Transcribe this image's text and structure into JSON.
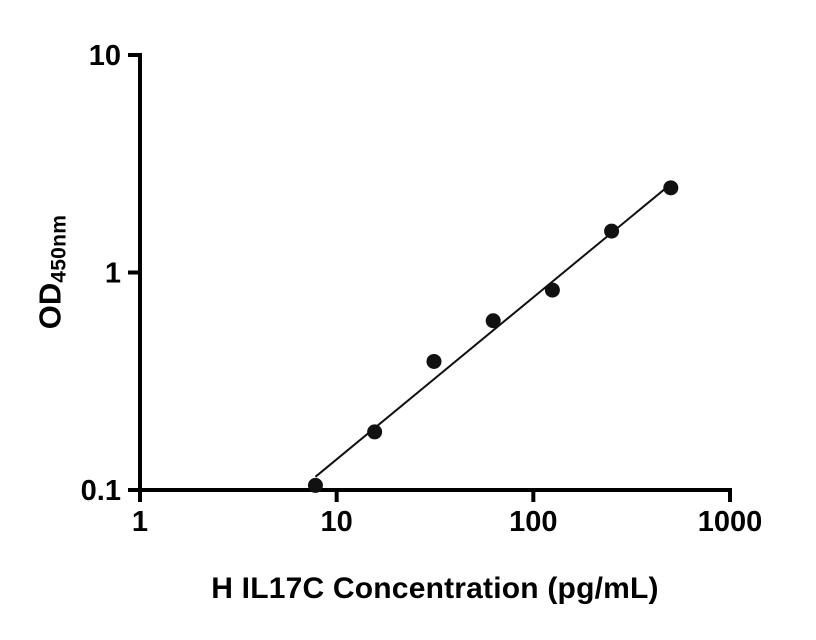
{
  "chart_data": {
    "type": "scatter",
    "title": "",
    "xlabel": "H IL17C Concentration (pg/mL)",
    "ylabel_main": "OD",
    "ylabel_sub": "450nm",
    "x_scale": "log",
    "y_scale": "log",
    "xlim": [
      1,
      1000
    ],
    "ylim": [
      0.1,
      10
    ],
    "x_ticks": [
      1,
      10,
      100,
      1000
    ],
    "x_tick_labels": [
      "1",
      "10",
      "100",
      "1000"
    ],
    "y_ticks": [
      0.1,
      1,
      10
    ],
    "y_tick_labels": [
      "0.1",
      "1",
      "10"
    ],
    "grid": false,
    "legend": "none",
    "points": [
      {
        "x": 7.8,
        "y": 0.105
      },
      {
        "x": 15.6,
        "y": 0.185
      },
      {
        "x": 31.25,
        "y": 0.39
      },
      {
        "x": 62.5,
        "y": 0.6
      },
      {
        "x": 125,
        "y": 0.83
      },
      {
        "x": 250,
        "y": 1.55
      },
      {
        "x": 500,
        "y": 2.45
      }
    ],
    "trendline": {
      "x1": 7.8,
      "y1": 0.115,
      "x2": 500,
      "y2": 2.55
    },
    "marker": {
      "shape": "circle",
      "color": "#111111",
      "radius": 7.5
    },
    "line_color": "#111111",
    "axis_color": "#000000"
  }
}
